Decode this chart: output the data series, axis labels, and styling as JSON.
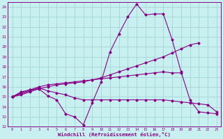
{
  "xlabel": "Windchill (Refroidissement éolien,°C)",
  "bg_color": "#c8f0f0",
  "grid_color": "#a8d8d8",
  "line_color": "#880088",
  "xlim_min": -0.5,
  "xlim_max": 23.5,
  "ylim_min": 12,
  "ylim_max": 24.5,
  "xticks": [
    0,
    1,
    2,
    3,
    4,
    5,
    6,
    7,
    8,
    9,
    10,
    11,
    12,
    13,
    14,
    15,
    16,
    17,
    18,
    19,
    20,
    21,
    22,
    23
  ],
  "yticks": [
    12,
    13,
    14,
    15,
    16,
    17,
    18,
    19,
    20,
    21,
    22,
    23,
    24
  ],
  "series": [
    {
      "x": [
        0,
        1,
        2,
        3,
        4,
        5,
        6,
        7,
        8,
        9,
        10,
        11,
        12,
        13,
        14,
        15,
        16,
        17,
        18,
        19,
        20,
        21,
        22,
        23
      ],
      "y": [
        15.0,
        15.5,
        15.7,
        15.8,
        15.1,
        14.7,
        13.3,
        13.0,
        12.2,
        14.4,
        16.5,
        19.5,
        21.3,
        23.0,
        24.3,
        23.2,
        23.3,
        23.3,
        20.7,
        17.5,
        14.7,
        13.5,
        13.4,
        13.3
      ]
    },
    {
      "x": [
        0,
        1,
        2,
        3,
        4,
        5,
        6,
        7,
        8,
        9,
        10,
        11,
        12,
        13,
        14,
        15,
        16,
        17,
        18,
        19,
        20,
        21
      ],
      "y": [
        15.0,
        15.2,
        15.5,
        15.8,
        16.0,
        16.2,
        16.3,
        16.4,
        16.5,
        16.7,
        16.9,
        17.2,
        17.5,
        17.8,
        18.1,
        18.4,
        18.7,
        19.0,
        19.4,
        19.8,
        20.2,
        20.4
      ]
    },
    {
      "x": [
        0,
        1,
        2,
        3,
        4,
        5,
        6,
        7,
        8,
        9,
        10,
        11,
        12,
        13,
        14,
        15,
        16,
        17,
        18,
        19,
        20,
        21,
        22,
        23
      ],
      "y": [
        15.0,
        15.3,
        15.6,
        15.9,
        15.6,
        15.4,
        15.2,
        14.9,
        14.7,
        14.7,
        14.7,
        14.7,
        14.7,
        14.7,
        14.7,
        14.7,
        14.7,
        14.7,
        14.6,
        14.5,
        14.4,
        14.3,
        14.2,
        13.5
      ]
    },
    {
      "x": [
        0,
        1,
        2,
        3,
        4,
        5,
        6,
        7,
        8,
        9,
        10,
        11,
        12,
        13,
        14,
        15,
        16,
        17,
        18,
        19
      ],
      "y": [
        15.0,
        15.4,
        15.7,
        16.0,
        16.2,
        16.3,
        16.4,
        16.5,
        16.6,
        16.7,
        16.8,
        16.9,
        17.0,
        17.1,
        17.2,
        17.3,
        17.4,
        17.5,
        17.4,
        17.4
      ]
    }
  ]
}
